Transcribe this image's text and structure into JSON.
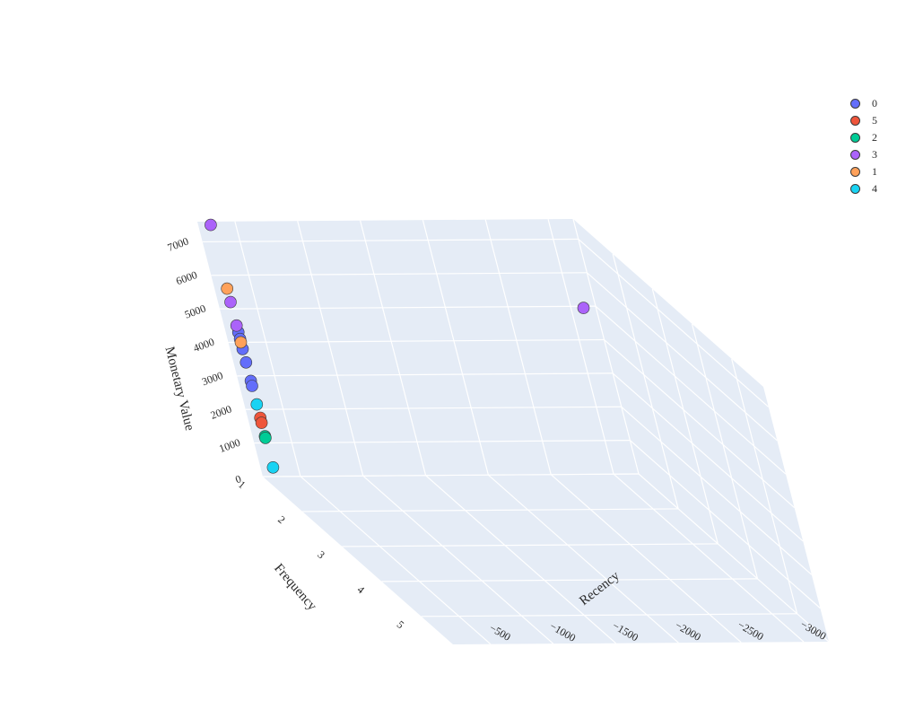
{
  "chart_data": {
    "type": "scatter",
    "x_label": "Recency",
    "y_label": "Frequency",
    "z_label": "Monetary Value",
    "x_ticks": [
      -3000,
      -2500,
      -2000,
      -1500,
      -1000,
      -500
    ],
    "y_ticks": [
      1,
      2,
      3,
      4,
      5
    ],
    "z_ticks": [
      0,
      1000,
      2000,
      3000,
      4000,
      5000,
      6000,
      7000
    ],
    "x_range": [
      -3200,
      -200
    ],
    "y_range": [
      1,
      5.8
    ],
    "z_range": [
      0,
      7600
    ],
    "legend_position": "top-right",
    "series": [
      {
        "name": "0",
        "color": "#636efa",
        "points": [
          [
            -300,
            1,
            4300
          ],
          [
            -300,
            1,
            4100
          ],
          [
            -300,
            1,
            3800
          ],
          [
            -300,
            1,
            3400
          ],
          [
            -300,
            1,
            2850
          ],
          [
            -300,
            1,
            2700
          ]
        ]
      },
      {
        "name": "5",
        "color": "#ef553b",
        "points": [
          [
            -300,
            1,
            1750
          ],
          [
            -300,
            1,
            1600
          ]
        ]
      },
      {
        "name": "2",
        "color": "#00cc96",
        "points": [
          [
            -300,
            1,
            1200
          ],
          [
            -300,
            1,
            1150
          ]
        ]
      },
      {
        "name": "3",
        "color": "#ab63fa",
        "points": [
          [
            -300,
            1,
            7500
          ],
          [
            -300,
            1,
            5200
          ],
          [
            -300,
            1,
            4500
          ],
          [
            -3100,
            1,
            4950
          ]
        ]
      },
      {
        "name": "1",
        "color": "#ffa15a",
        "points": [
          [
            -300,
            1,
            5600
          ],
          [
            -300,
            1,
            4000
          ]
        ]
      },
      {
        "name": "4",
        "color": "#19d3f3",
        "points": [
          [
            -300,
            1,
            2150
          ],
          [
            -300,
            1,
            270
          ]
        ]
      }
    ]
  }
}
